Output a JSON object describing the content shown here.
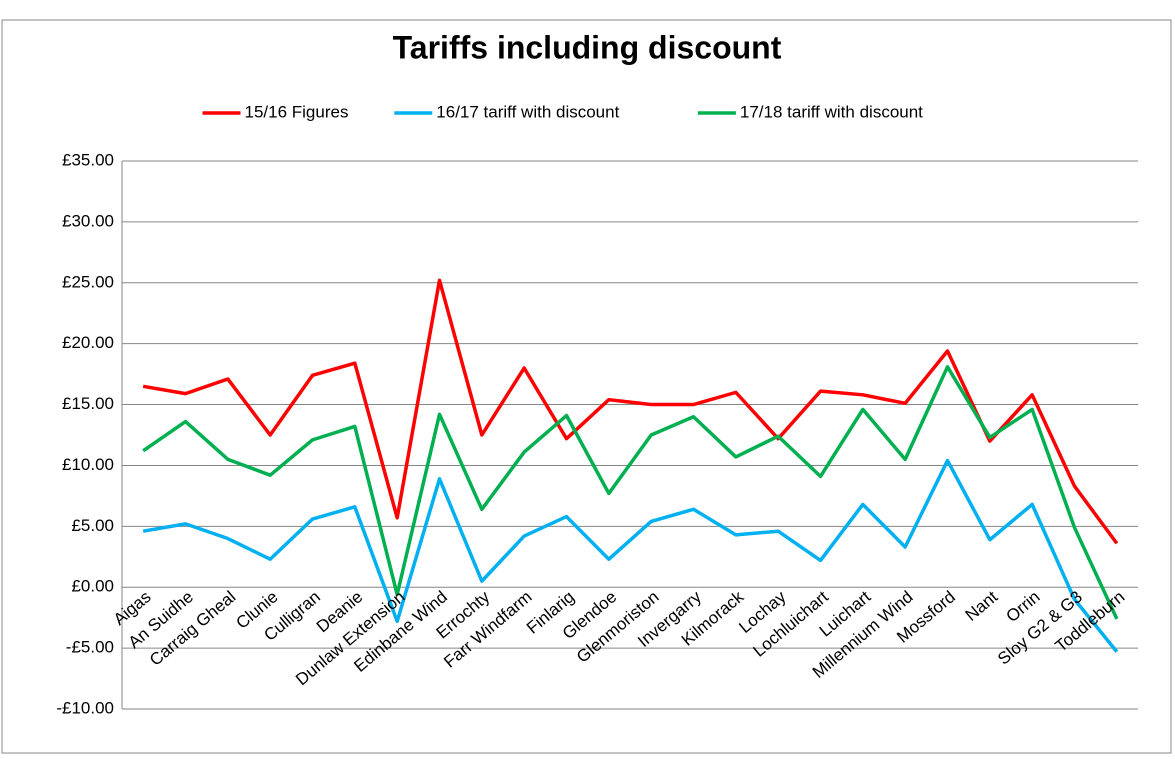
{
  "chart_data": {
    "type": "line",
    "title": "Tariffs including discount",
    "categories": [
      "Aigas",
      "An Suidhe",
      "Carraig Gheal",
      "Clunie",
      "Culligran",
      "Deanie",
      "Dunlaw Extension",
      "Edinbane Wind",
      "Errochty",
      "Farr Windfarm",
      "Finlarig",
      "Glendoe",
      "Glenmoriston",
      "Invergarry",
      "Kilmorack",
      "Lochay",
      "Lochluichart",
      "Luichart",
      "Millennium Wind",
      "Mossford",
      "Nant",
      "Orrin",
      "Sloy G2 & G3",
      "Toddleburn"
    ],
    "series": [
      {
        "name": "15/16 Figures",
        "color": "#ff0000",
        "values": [
          16.5,
          15.9,
          17.1,
          12.5,
          17.4,
          18.4,
          5.7,
          25.2,
          12.5,
          18.0,
          12.2,
          15.4,
          15.0,
          15.0,
          16.0,
          12.2,
          16.1,
          15.8,
          15.1,
          19.4,
          12.0,
          15.8,
          8.3,
          3.6
        ]
      },
      {
        "name": "16/17 tariff with discount",
        "color": "#00b0f0",
        "values": [
          4.6,
          5.2,
          4.0,
          2.3,
          5.6,
          6.6,
          -2.8,
          8.9,
          0.5,
          4.2,
          5.8,
          2.3,
          5.4,
          6.4,
          4.3,
          4.6,
          2.2,
          6.8,
          3.3,
          10.4,
          3.9,
          6.8,
          -1.0,
          -5.3
        ]
      },
      {
        "name": "17/18 tariff with discount",
        "color": "#00b050",
        "values": [
          11.2,
          13.6,
          10.5,
          9.2,
          12.1,
          13.2,
          -0.6,
          14.2,
          6.4,
          11.1,
          14.1,
          7.7,
          12.5,
          14.0,
          10.7,
          12.4,
          9.1,
          14.6,
          10.5,
          18.1,
          12.3,
          14.6,
          4.9,
          -2.6
        ]
      }
    ],
    "ylim": [
      -10,
      35
    ],
    "yticks": [
      {
        "value": -10,
        "label": "-£10.00"
      },
      {
        "value": -5,
        "label": "-£5.00"
      },
      {
        "value": 0,
        "label": "£0.00"
      },
      {
        "value": 5,
        "label": "£5.00"
      },
      {
        "value": 10,
        "label": "£10.00"
      },
      {
        "value": 15,
        "label": "£15.00"
      },
      {
        "value": 20,
        "label": "£20.00"
      },
      {
        "value": 25,
        "label": "£25.00"
      },
      {
        "value": 30,
        "label": "£30.00"
      },
      {
        "value": 35,
        "label": "£35.00"
      }
    ],
    "grid": true,
    "legend": "top"
  }
}
